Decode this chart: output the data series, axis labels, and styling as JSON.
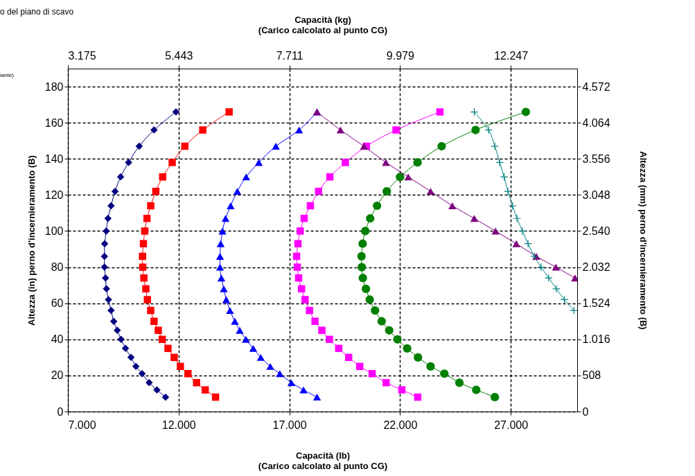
{
  "chart_data": {
    "type": "line",
    "xlabel": [
      "Capacità (lb)",
      "(Carico calcolato al punto CG)"
    ],
    "x2label": [
      "Capacità (kg)",
      "(Carico calcolato al punto CG)"
    ],
    "ylabel": "Altezza (in) perno d'incernieramento (B)",
    "y2label": "Altezza (mm) perno d'incernieramento (B)",
    "annotations": [
      "o del piano di scavo",
      "iante)"
    ],
    "xlim": [
      7000,
      30000
    ],
    "xticks": [
      {
        "value": 7000,
        "label": "7.000"
      },
      {
        "value": 12000,
        "label": "12.000"
      },
      {
        "value": 17000,
        "label": "17.000"
      },
      {
        "value": 22000,
        "label": "22.000"
      },
      {
        "value": 27000,
        "label": "27.000"
      }
    ],
    "x2lim": [
      3175,
      13608
    ],
    "x2ticks": [
      {
        "value": 3175,
        "label": "3.175"
      },
      {
        "value": 5443,
        "label": "5.443"
      },
      {
        "value": 7711,
        "label": "7.711"
      },
      {
        "value": 9979,
        "label": "9.979"
      },
      {
        "value": 12247,
        "label": "12.247"
      }
    ],
    "ylim": [
      0,
      190
    ],
    "yticks": [
      0,
      20,
      40,
      60,
      80,
      100,
      120,
      140,
      160,
      180
    ],
    "y2lim": [
      0,
      4826
    ],
    "y2ticks": [
      0,
      508,
      {
        "value": 1016,
        "label": "1.016"
      },
      {
        "value": 1524,
        "label": "1.524"
      },
      {
        "value": 2032,
        "label": "2.032"
      },
      {
        "value": 2540,
        "label": "2.540"
      },
      {
        "value": 3048,
        "label": "3.048"
      },
      {
        "value": 3556,
        "label": "3.556"
      },
      {
        "value": 4064,
        "label": "4.064"
      },
      {
        "value": 4572,
        "label": "4.572"
      }
    ],
    "grid": true,
    "line_style": "solid",
    "series": [
      {
        "color": "#000080",
        "marker": "diamond",
        "x": [
          11880,
          10890,
          10220,
          9740,
          9380,
          9130,
          8950,
          8810,
          8730,
          8660,
          8650,
          8650,
          8700,
          8740,
          8830,
          8950,
          9070,
          9230,
          9400,
          9600,
          9850,
          10070,
          10350,
          10670,
          11020,
          11410
        ],
        "values": [
          166,
          156,
          147,
          138,
          130,
          122,
          114,
          107,
          100,
          93,
          86,
          80,
          74,
          68,
          62,
          56,
          50,
          45,
          40,
          35,
          30,
          25,
          21,
          16,
          12,
          8
        ]
      },
      {
        "color": "#ff0000",
        "marker": "square",
        "x": [
          14280,
          13090,
          12280,
          11710,
          11280,
          10970,
          10740,
          10570,
          10470,
          10410,
          10370,
          10380,
          10430,
          10520,
          10590,
          10740,
          10890,
          11080,
          11260,
          11520,
          11800,
          12080,
          12420,
          12810,
          13200,
          13670
        ],
        "values": [
          166,
          156,
          147,
          138,
          130,
          122,
          114,
          107,
          100,
          93,
          86,
          80,
          74,
          68,
          62,
          56,
          50,
          45,
          40,
          35,
          30,
          25,
          21,
          16,
          12,
          8
        ]
      },
      {
        "color": "#0000ff",
        "marker": "triangle",
        "x": [
          18250,
          17440,
          16390,
          15620,
          15050,
          14650,
          14350,
          14120,
          13980,
          13900,
          13870,
          13870,
          13930,
          14040,
          14150,
          14320,
          14540,
          14760,
          15040,
          15370,
          15710,
          16140,
          16570,
          17090,
          17640,
          18250
        ],
        "values": [
          166,
          156,
          147,
          138,
          130,
          122,
          114,
          107,
          100,
          93,
          86,
          80,
          74,
          68,
          62,
          56,
          50,
          45,
          40,
          35,
          30,
          25,
          21,
          16,
          12,
          8
        ]
      },
      {
        "color": "#ff00ff",
        "marker": "square",
        "x": [
          23800,
          21820,
          20480,
          19530,
          18830,
          18320,
          17950,
          17670,
          17490,
          17390,
          17330,
          17360,
          17420,
          17550,
          17710,
          17910,
          18160,
          18470,
          18810,
          19230,
          19680,
          20180,
          20740,
          21370,
          22080,
          22800
        ],
        "values": [
          166,
          156,
          147,
          138,
          130,
          122,
          114,
          107,
          100,
          93,
          86,
          80,
          74,
          68,
          62,
          56,
          50,
          45,
          40,
          35,
          30,
          25,
          21,
          16,
          12,
          8
        ]
      },
      {
        "color": "#008000",
        "marker": "circle",
        "x": [
          27680,
          25410,
          23880,
          22790,
          22000,
          21400,
          20960,
          20650,
          20430,
          20310,
          20260,
          20270,
          20320,
          20460,
          20630,
          20870,
          21170,
          21510,
          21880,
          22320,
          22810,
          23380,
          24000,
          24680,
          25440,
          26280
        ],
        "values": [
          166,
          156,
          147,
          138,
          130,
          122,
          114,
          107,
          100,
          93,
          86,
          80,
          74,
          68,
          62,
          56,
          50,
          45,
          40,
          35,
          30,
          25,
          21,
          16,
          12,
          8
        ]
      },
      {
        "color": "#800080",
        "marker": "triangle",
        "x": [
          18250,
          19310,
          20370,
          21360,
          22370,
          23380,
          24360,
          25350,
          26310,
          27250,
          28150,
          29040,
          29900
        ],
        "values": [
          166,
          156,
          147,
          138,
          130,
          122,
          114,
          107,
          100,
          93,
          86,
          80,
          74
        ]
      },
      {
        "color": "#008080",
        "marker": "cross",
        "x": [
          25350,
          26000,
          26280,
          26500,
          26700,
          26870,
          27080,
          27280,
          27530,
          27780,
          28060,
          28370,
          28710,
          29060,
          29420,
          29850
        ],
        "values": [
          166,
          156,
          147,
          138,
          130,
          122,
          114,
          107,
          100,
          93,
          86,
          80,
          74,
          68,
          62,
          56
        ]
      }
    ]
  }
}
